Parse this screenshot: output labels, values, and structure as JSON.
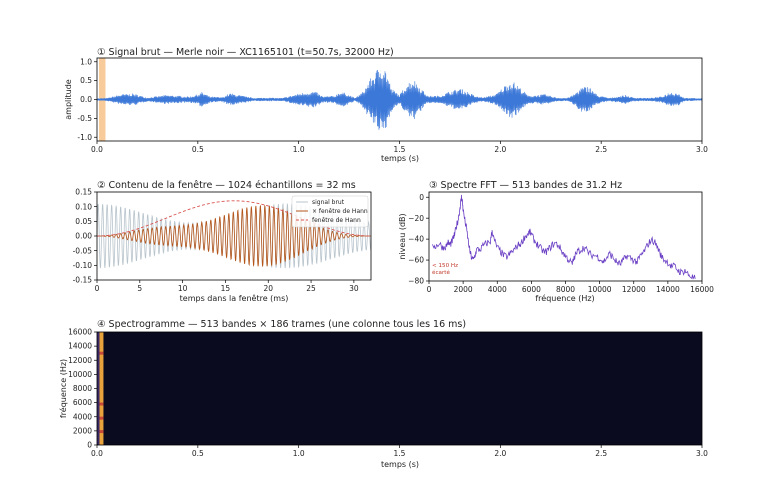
{
  "figure": {
    "panels": [
      {
        "id": "waveform",
        "type": "line",
        "title": "① Signal brut — Merle noir — XC1165101   (t=50.7s, 32000 Hz)",
        "xlabel": "temps (s)",
        "ylabel": "amplitude",
        "xlim": [
          0,
          3.0
        ],
        "ylim": [
          -1.1,
          1.1
        ],
        "xticks": [
          "0.0",
          "0.5",
          "1.0",
          "1.5",
          "2.0",
          "2.5",
          "3.0"
        ],
        "xtick_values": [
          0,
          0.5,
          1.0,
          1.5,
          2.0,
          2.5,
          3.0
        ],
        "yticks": [
          "1.0",
          "0.5",
          "0.0",
          "-0.5",
          "-1.0"
        ],
        "ytick_values": [
          1.0,
          0.5,
          0.0,
          -0.5,
          -1.0
        ],
        "highlight_window": [
          0.01,
          0.042
        ],
        "highlight_color": "#f8cc9a",
        "signal_color": "#3c78d8",
        "envelope": [
          {
            "t": 0.0,
            "a": 0.03
          },
          {
            "t": 0.05,
            "a": 0.04
          },
          {
            "t": 0.12,
            "a": 0.14
          },
          {
            "t": 0.18,
            "a": 0.16
          },
          {
            "t": 0.25,
            "a": 0.05
          },
          {
            "t": 0.34,
            "a": 0.12
          },
          {
            "t": 0.4,
            "a": 0.1
          },
          {
            "t": 0.46,
            "a": 0.08
          },
          {
            "t": 0.5,
            "a": 0.14
          },
          {
            "t": 0.52,
            "a": 0.2
          },
          {
            "t": 0.56,
            "a": 0.08
          },
          {
            "t": 0.62,
            "a": 0.06
          },
          {
            "t": 0.66,
            "a": 0.17
          },
          {
            "t": 0.72,
            "a": 0.1
          },
          {
            "t": 0.78,
            "a": 0.04
          },
          {
            "t": 0.85,
            "a": 0.05
          },
          {
            "t": 0.92,
            "a": 0.04
          },
          {
            "t": 1.0,
            "a": 0.16
          },
          {
            "t": 1.04,
            "a": 0.2
          },
          {
            "t": 1.08,
            "a": 0.22
          },
          {
            "t": 1.12,
            "a": 0.08
          },
          {
            "t": 1.18,
            "a": 0.1
          },
          {
            "t": 1.2,
            "a": 0.2
          },
          {
            "t": 1.23,
            "a": 0.18
          },
          {
            "t": 1.28,
            "a": 0.04
          },
          {
            "t": 1.32,
            "a": 0.22
          },
          {
            "t": 1.36,
            "a": 0.6
          },
          {
            "t": 1.38,
            "a": 0.74
          },
          {
            "t": 1.41,
            "a": 0.95
          },
          {
            "t": 1.43,
            "a": 0.85
          },
          {
            "t": 1.46,
            "a": 0.3
          },
          {
            "t": 1.5,
            "a": 0.12
          },
          {
            "t": 1.54,
            "a": 0.45
          },
          {
            "t": 1.57,
            "a": 0.55
          },
          {
            "t": 1.6,
            "a": 0.35
          },
          {
            "t": 1.64,
            "a": 0.1
          },
          {
            "t": 1.7,
            "a": 0.1
          },
          {
            "t": 1.75,
            "a": 0.22
          },
          {
            "t": 1.8,
            "a": 0.3
          },
          {
            "t": 1.84,
            "a": 0.2
          },
          {
            "t": 1.88,
            "a": 0.08
          },
          {
            "t": 1.92,
            "a": 0.06
          },
          {
            "t": 1.98,
            "a": 0.15
          },
          {
            "t": 2.03,
            "a": 0.42
          },
          {
            "t": 2.06,
            "a": 0.5
          },
          {
            "t": 2.09,
            "a": 0.36
          },
          {
            "t": 2.14,
            "a": 0.1
          },
          {
            "t": 2.22,
            "a": 0.14
          },
          {
            "t": 2.28,
            "a": 0.05
          },
          {
            "t": 2.33,
            "a": 0.04
          },
          {
            "t": 2.36,
            "a": 0.12
          },
          {
            "t": 2.4,
            "a": 0.32
          },
          {
            "t": 2.44,
            "a": 0.36
          },
          {
            "t": 2.48,
            "a": 0.12
          },
          {
            "t": 2.54,
            "a": 0.04
          },
          {
            "t": 2.62,
            "a": 0.12
          },
          {
            "t": 2.66,
            "a": 0.05
          },
          {
            "t": 2.74,
            "a": 0.04
          },
          {
            "t": 2.8,
            "a": 0.08
          },
          {
            "t": 2.84,
            "a": 0.2
          },
          {
            "t": 2.88,
            "a": 0.18
          },
          {
            "t": 2.91,
            "a": 0.05
          },
          {
            "t": 2.94,
            "a": 0.04
          },
          {
            "t": 3.0,
            "a": 0.03
          }
        ]
      },
      {
        "id": "window",
        "type": "line",
        "title": "② Contenu de la fenêtre — 1024 échantillons = 32 ms",
        "xlabel": "temps dans la fenêtre (ms)",
        "ylabel": "",
        "xlim": [
          0,
          32
        ],
        "ylim": [
          -0.15,
          0.15
        ],
        "xticks": [
          "0",
          "5",
          "10",
          "15",
          "20",
          "25",
          "30"
        ],
        "xtick_values": [
          0,
          5,
          10,
          15,
          20,
          25,
          30
        ],
        "yticks": [
          "0.15",
          "0.10",
          "0.05",
          "0.00",
          "-0.05",
          "-0.10",
          "-0.15"
        ],
        "ytick_values": [
          0.15,
          0.1,
          0.05,
          0.0,
          -0.05,
          -0.1,
          -0.15
        ],
        "hann_peak": 0.12,
        "raw_amplitude": 0.11,
        "raw_min_amplitude": 0.045,
        "oscillation_frequency_khz": 1.9,
        "legend": [
          "signal brut",
          "× fenêtre de Hann",
          "fenêtre de Hann"
        ],
        "legend_position": "upper right",
        "colors": {
          "raw": "#b8c4cc",
          "windowed": "#b5561b",
          "hann": "#d9534f"
        }
      },
      {
        "id": "spectrum",
        "type": "line",
        "title": "③ Spectre FFT — 513 bandes de 31.2 Hz",
        "xlabel": "fréquence (Hz)",
        "ylabel": "niveau (dB)",
        "xlim": [
          0,
          16000
        ],
        "ylim": [
          -80,
          5
        ],
        "xticks": [
          "0",
          "2000",
          "4000",
          "6000",
          "8000",
          "10000",
          "12000",
          "14000",
          "16000"
        ],
        "xtick_values": [
          0,
          2000,
          4000,
          6000,
          8000,
          10000,
          12000,
          14000,
          16000
        ],
        "yticks": [
          "0",
          "−20",
          "−40",
          "−60",
          "−80"
        ],
        "ytick_values": [
          0,
          -20,
          -40,
          -60,
          -80
        ],
        "annotation_line1": "< 150 Hz",
        "annotation_line2": "écarté",
        "cutoff_hz": 150,
        "line_color": "#6a3fc4",
        "points": [
          [
            200,
            -45
          ],
          [
            400,
            -47
          ],
          [
            600,
            -44
          ],
          [
            800,
            -48
          ],
          [
            1000,
            -47
          ],
          [
            1100,
            -43
          ],
          [
            1200,
            -45
          ],
          [
            1300,
            -44
          ],
          [
            1400,
            -40
          ],
          [
            1500,
            -36
          ],
          [
            1600,
            -28
          ],
          [
            1700,
            -22
          ],
          [
            1800,
            -12
          ],
          [
            1850,
            -6
          ],
          [
            1900,
            0
          ],
          [
            1950,
            -3
          ],
          [
            2000,
            -12
          ],
          [
            2100,
            -22
          ],
          [
            2200,
            -30
          ],
          [
            2300,
            -42
          ],
          [
            2400,
            -52
          ],
          [
            2500,
            -58
          ],
          [
            2600,
            -60
          ],
          [
            2700,
            -55
          ],
          [
            2800,
            -50
          ],
          [
            3000,
            -50
          ],
          [
            3200,
            -46
          ],
          [
            3400,
            -44
          ],
          [
            3600,
            -42
          ],
          [
            3700,
            -32
          ],
          [
            3800,
            -40
          ],
          [
            4000,
            -48
          ],
          [
            4200,
            -52
          ],
          [
            4400,
            -56
          ],
          [
            4600,
            -57
          ],
          [
            4800,
            -53
          ],
          [
            5000,
            -50
          ],
          [
            5200,
            -46
          ],
          [
            5400,
            -44
          ],
          [
            5600,
            -38
          ],
          [
            5800,
            -35
          ],
          [
            5900,
            -33
          ],
          [
            6000,
            -36
          ],
          [
            6200,
            -42
          ],
          [
            6400,
            -46
          ],
          [
            6600,
            -50
          ],
          [
            6800,
            -53
          ],
          [
            7000,
            -50
          ],
          [
            7200,
            -46
          ],
          [
            7400,
            -44
          ],
          [
            7600,
            -46
          ],
          [
            7800,
            -52
          ],
          [
            8000,
            -56
          ],
          [
            8200,
            -60
          ],
          [
            8400,
            -64
          ],
          [
            8500,
            -58
          ],
          [
            8700,
            -52
          ],
          [
            8900,
            -50
          ],
          [
            9100,
            -48
          ],
          [
            9300,
            -52
          ],
          [
            9500,
            -55
          ],
          [
            9800,
            -56
          ],
          [
            10000,
            -58
          ],
          [
            10200,
            -62
          ],
          [
            10400,
            -58
          ],
          [
            10600,
            -54
          ],
          [
            10800,
            -58
          ],
          [
            11000,
            -62
          ],
          [
            11200,
            -64
          ],
          [
            11400,
            -60
          ],
          [
            11600,
            -56
          ],
          [
            11800,
            -58
          ],
          [
            12000,
            -60
          ],
          [
            12200,
            -62
          ],
          [
            12400,
            -56
          ],
          [
            12600,
            -52
          ],
          [
            12800,
            -46
          ],
          [
            13000,
            -41
          ],
          [
            13200,
            -42
          ],
          [
            13400,
            -48
          ],
          [
            13600,
            -56
          ],
          [
            13800,
            -60
          ],
          [
            14000,
            -62
          ],
          [
            14200,
            -66
          ],
          [
            14400,
            -66
          ],
          [
            14600,
            -70
          ],
          [
            14800,
            -72
          ],
          [
            15000,
            -70
          ],
          [
            15200,
            -74
          ],
          [
            15400,
            -76
          ],
          [
            15600,
            -78
          ]
        ]
      },
      {
        "id": "spectrogram",
        "type": "heatmap",
        "title": "④ Spectrogramme — 513 bandes × 186 trames (une colonne tous les 16 ms)",
        "xlabel": "temps (s)",
        "ylabel": "fréquence (Hz)",
        "xlim": [
          0,
          3.0
        ],
        "ylim": [
          0,
          16000
        ],
        "xticks": [
          "0.0",
          "0.5",
          "1.0",
          "1.5",
          "2.0",
          "2.5",
          "3.0"
        ],
        "xtick_values": [
          0,
          0.5,
          1.0,
          1.5,
          2.0,
          2.5,
          3.0
        ],
        "yticks": [
          "16000",
          "14000",
          "12000",
          "10000",
          "8000",
          "6000",
          "4000",
          "2000",
          "0"
        ],
        "ytick_values": [
          16000,
          14000,
          12000,
          10000,
          8000,
          6000,
          4000,
          2000,
          0
        ],
        "background_color": "#0a0b1e",
        "filled_until_s": 0.032,
        "filled_column_color": "#e8a33c",
        "hotspots_hz": [
          1900,
          3800,
          5800,
          13000
        ]
      }
    ]
  }
}
